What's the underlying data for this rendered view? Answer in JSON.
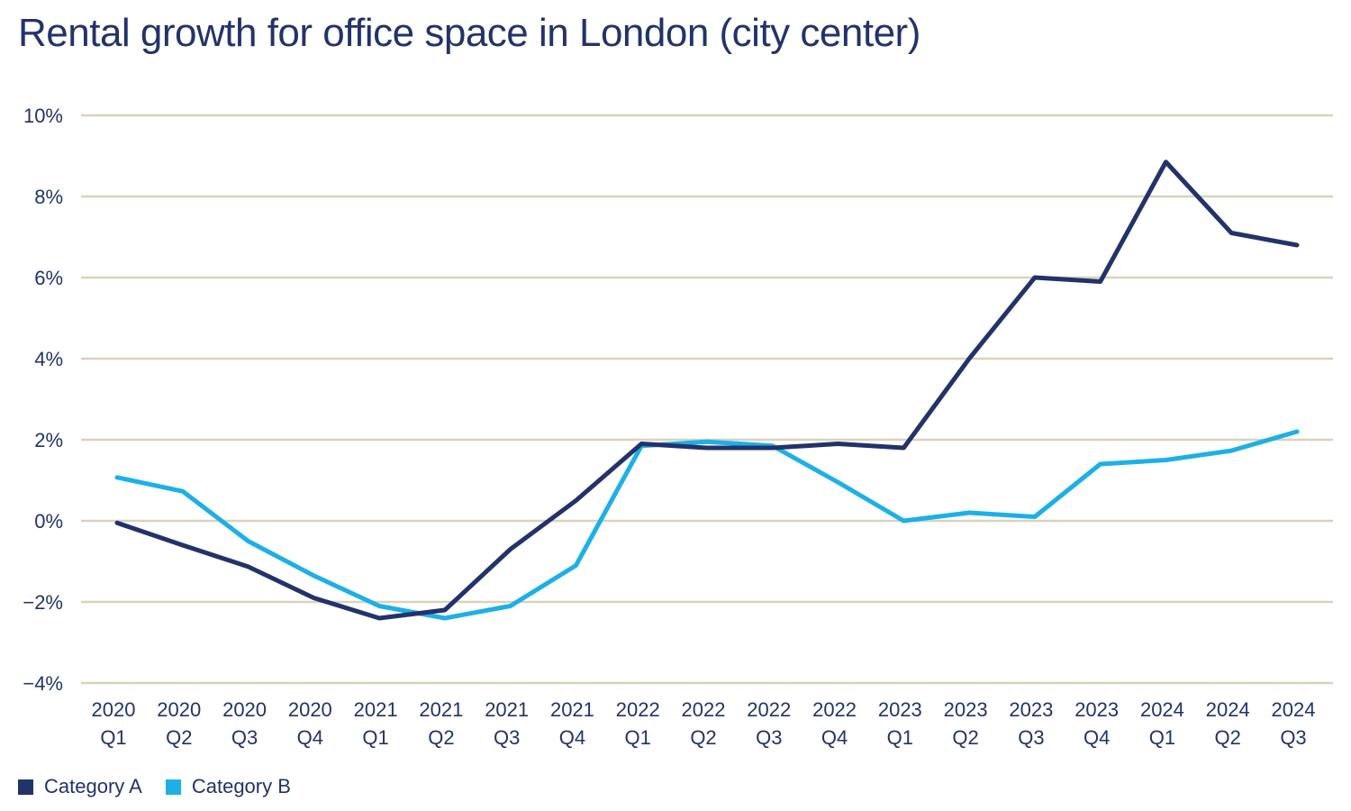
{
  "chart_data": {
    "type": "line",
    "title": "Rental growth for office space in London (city center)",
    "xlabel": "",
    "ylabel": "",
    "categories": [
      [
        "2020",
        "Q1"
      ],
      [
        "2020",
        "Q2"
      ],
      [
        "2020",
        "Q3"
      ],
      [
        "2020",
        "Q4"
      ],
      [
        "2021",
        "Q1"
      ],
      [
        "2021",
        "Q2"
      ],
      [
        "2021",
        "Q3"
      ],
      [
        "2021",
        "Q4"
      ],
      [
        "2022",
        "Q1"
      ],
      [
        "2022",
        "Q2"
      ],
      [
        "2022",
        "Q3"
      ],
      [
        "2022",
        "Q4"
      ],
      [
        "2023",
        "Q1"
      ],
      [
        "2023",
        "Q2"
      ],
      [
        "2023",
        "Q3"
      ],
      [
        "2023",
        "Q4"
      ],
      [
        "2024",
        "Q1"
      ],
      [
        "2024",
        "Q2"
      ],
      [
        "2024",
        "Q3"
      ]
    ],
    "ylim": [
      -4,
      10
    ],
    "yticks": [
      -4,
      -2,
      0,
      2,
      4,
      6,
      8,
      10
    ],
    "ytick_labels": [
      "−4%",
      "−2%",
      "0%",
      "2%",
      "4%",
      "6%",
      "8%",
      "10%"
    ],
    "grid": true,
    "legend_position": "bottom-left",
    "series": [
      {
        "name": "Category A",
        "color": "#22336b",
        "values": [
          -0.05,
          -0.6,
          -1.13,
          -1.9,
          -2.4,
          -2.2,
          -0.7,
          0.5,
          1.9,
          1.8,
          1.8,
          1.9,
          1.8,
          4.0,
          6.0,
          5.9,
          8.85,
          7.1,
          6.8
        ]
      },
      {
        "name": "Category B",
        "color": "#1cb0e6",
        "values": [
          1.07,
          0.73,
          -0.5,
          -1.35,
          -2.1,
          -2.4,
          -2.1,
          -1.1,
          1.85,
          1.95,
          1.85,
          0.95,
          0.0,
          0.2,
          0.1,
          1.4,
          1.5,
          1.73,
          2.2
        ]
      }
    ]
  }
}
